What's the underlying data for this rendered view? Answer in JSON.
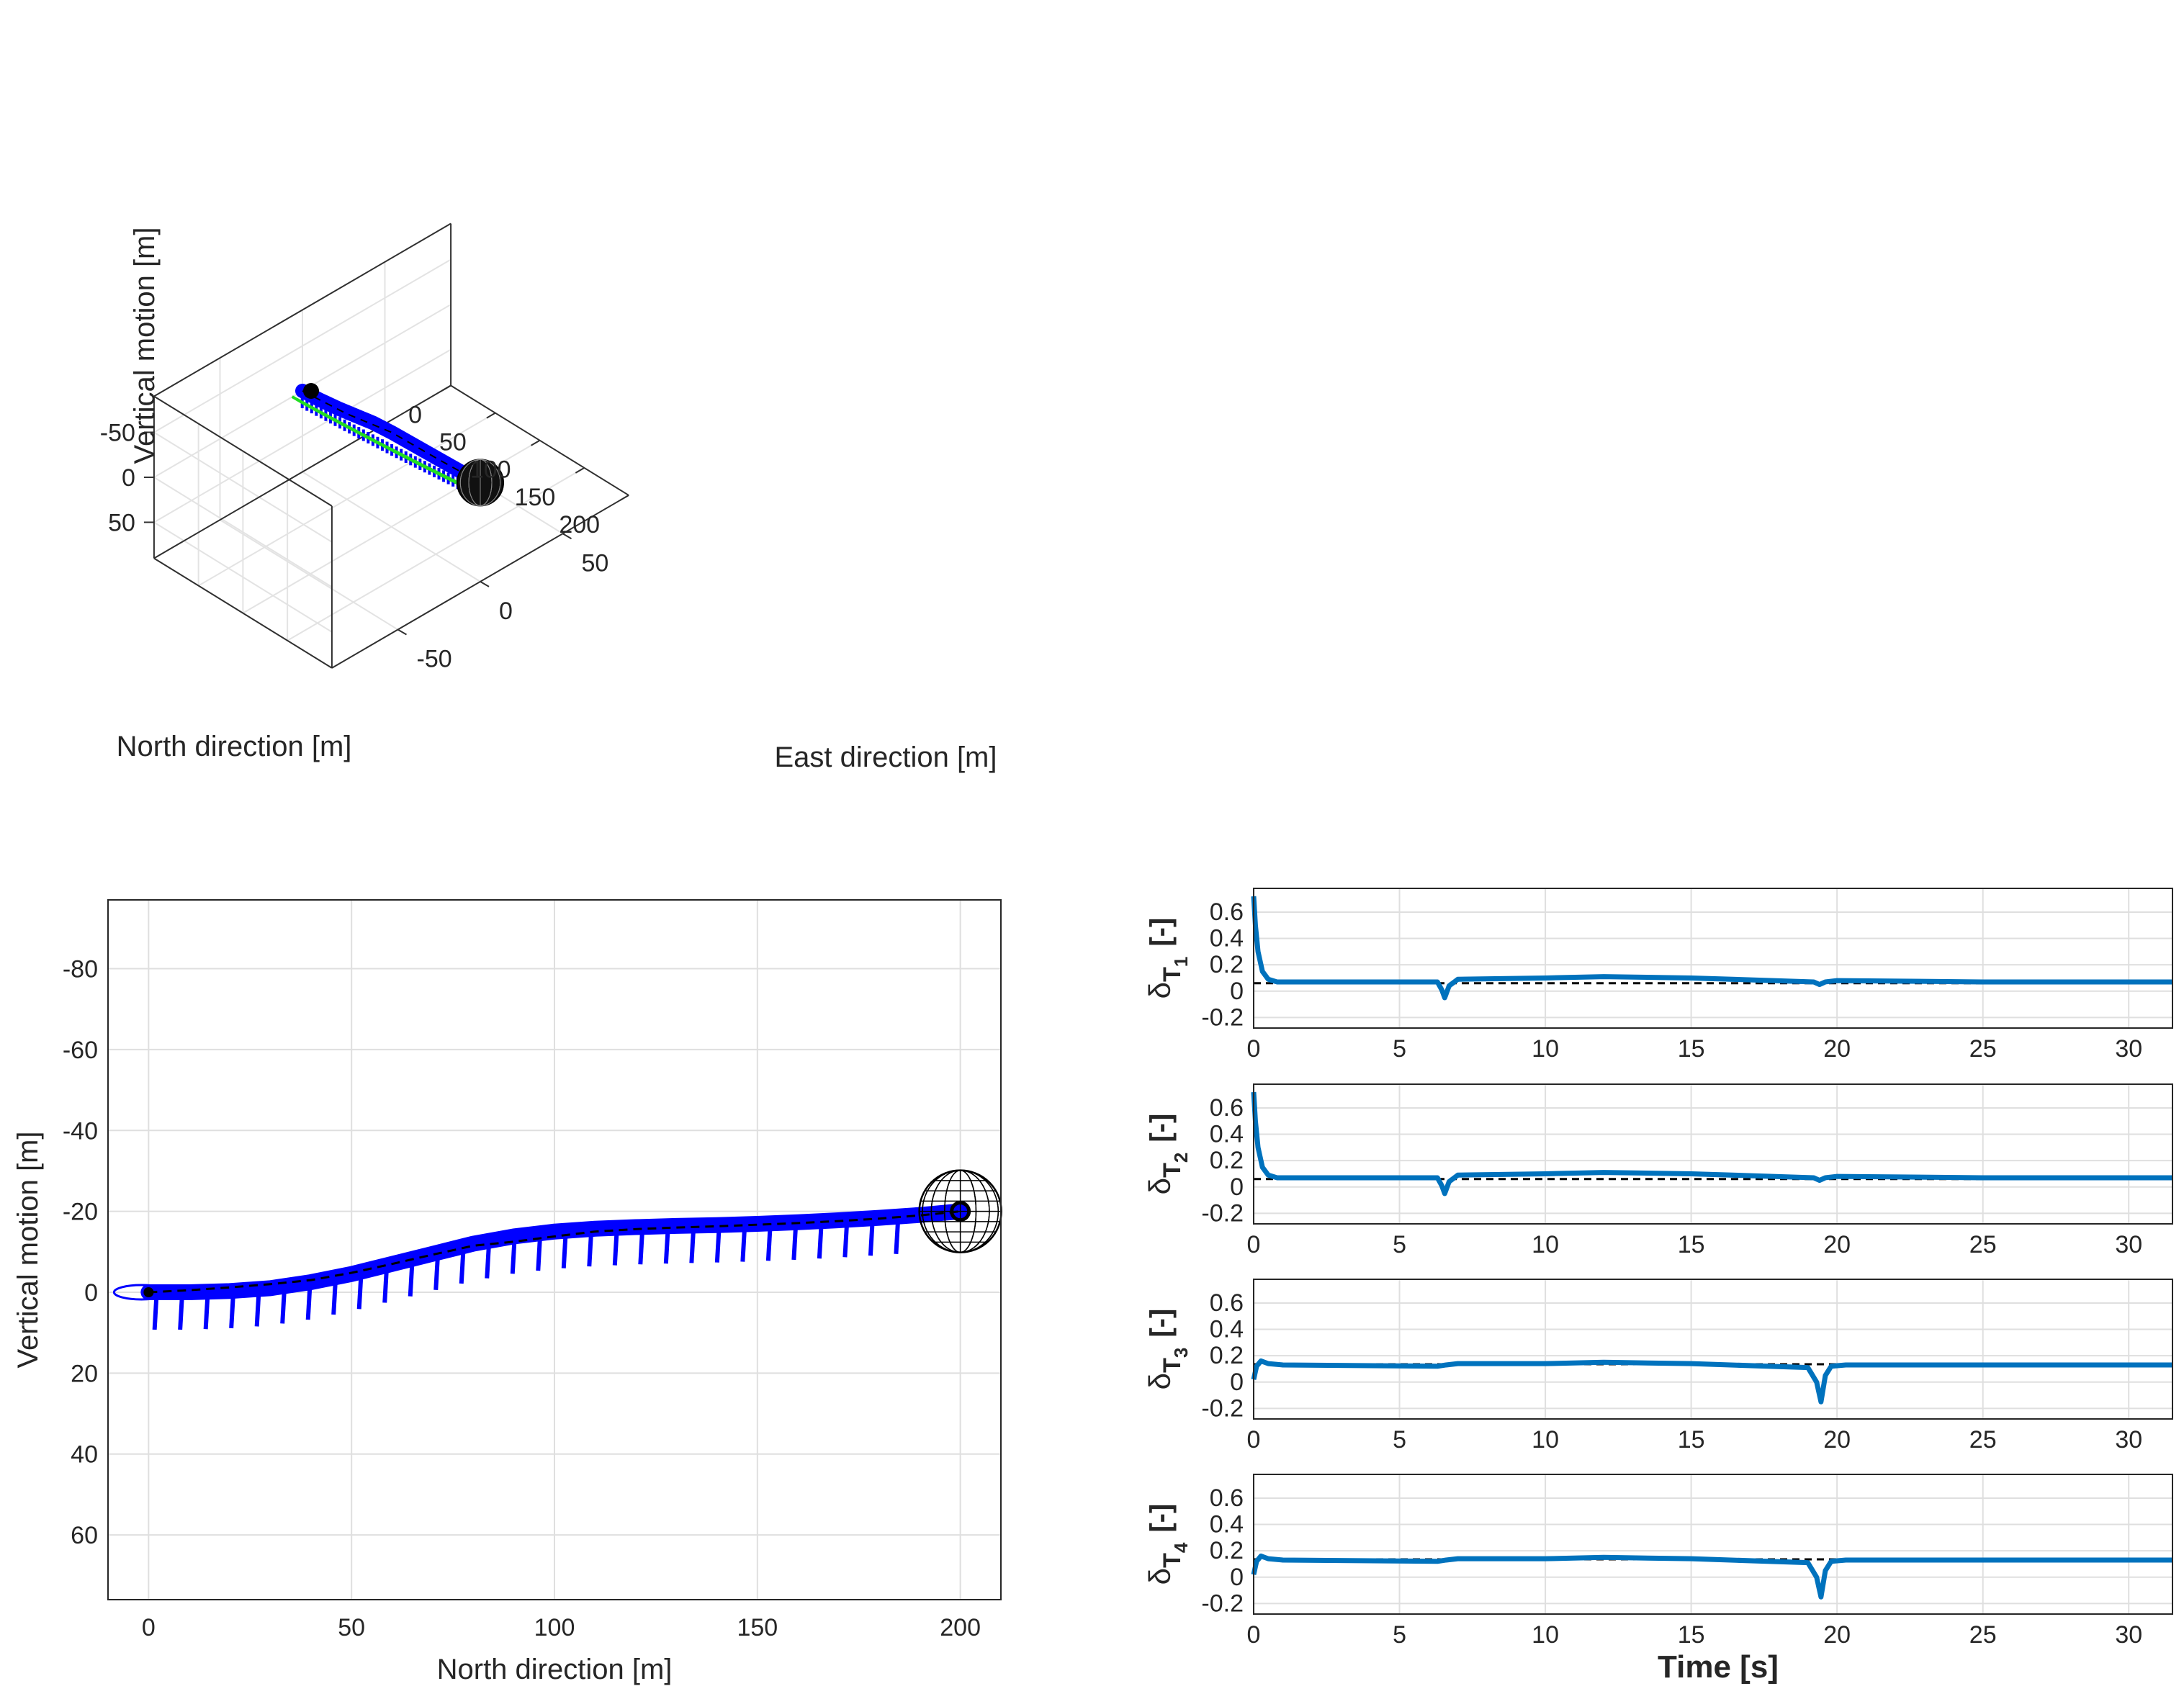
{
  "colors": {
    "trajectory_blue": "#0000ff",
    "thrust_line": "#0072bd",
    "reference_black": "#000000",
    "attitude_green": "#22dd22",
    "grid": "#dfdfdf",
    "axis_text": "#262626"
  },
  "chart_data": [
    {
      "id": "plot3d",
      "type": "line",
      "projection": "3d",
      "title": "",
      "xlabel": "North direction [m]",
      "ylabel": "East direction [m]",
      "zlabel": "Vertical motion [m]",
      "xticks": [
        0,
        50,
        100,
        150,
        200
      ],
      "yticks": [
        -50,
        0,
        50
      ],
      "zticks": [
        -50,
        0,
        50
      ],
      "xlim": [
        0,
        200
      ],
      "ylim": [
        -90,
        90
      ],
      "zlim": [
        -90,
        90
      ],
      "zdir": "reverse",
      "grid": true,
      "series": [
        {
          "name": "trajectory",
          "color": "#0000ff",
          "style": "solid",
          "x": [
            0,
            20,
            40,
            60,
            80,
            100,
            120,
            140,
            160,
            180,
            200
          ],
          "y": [
            0,
            0,
            0,
            0,
            0,
            0,
            0,
            0,
            0,
            0,
            0
          ],
          "z": [
            0,
            -2,
            -5,
            -9,
            -13,
            -15,
            -16,
            -17,
            -18,
            -19,
            -20
          ]
        },
        {
          "name": "reference",
          "color": "#000000",
          "style": "dashed",
          "x": [
            0,
            50,
            100,
            150,
            200
          ],
          "y": [
            0,
            0,
            0,
            0,
            0
          ],
          "z": [
            0,
            -5,
            -15,
            -17,
            -20
          ]
        }
      ],
      "markers": [
        {
          "name": "start",
          "x": 0,
          "y": 0,
          "z": 0
        },
        {
          "name": "target-sphere",
          "x": 200,
          "y": 0,
          "z": -20
        }
      ]
    },
    {
      "id": "side",
      "type": "line",
      "title": "",
      "xlabel": "North direction [m]",
      "ylabel": "Vertical motion [m]",
      "xticks": [
        0,
        50,
        100,
        150,
        200
      ],
      "yticks": [
        -80,
        -60,
        -40,
        -20,
        0,
        20,
        40,
        60
      ],
      "xlim": [
        -10,
        210
      ],
      "ylim": [
        -97,
        76
      ],
      "ydir": "reverse",
      "grid": true,
      "series": [
        {
          "name": "trajectory",
          "color": "#0000ff",
          "style": "solid",
          "x": [
            0,
            10,
            20,
            30,
            40,
            50,
            60,
            70,
            80,
            90,
            100,
            110,
            120,
            130,
            140,
            150,
            160,
            170,
            180,
            190,
            200
          ],
          "y": [
            0,
            0,
            -0.3,
            -1,
            -2.5,
            -4.5,
            -7,
            -9.5,
            -12,
            -13.8,
            -15,
            -15.7,
            -16.1,
            -16.4,
            -16.6,
            -16.9,
            -17.3,
            -17.8,
            -18.4,
            -19.1,
            -20
          ]
        },
        {
          "name": "reference",
          "color": "#000000",
          "style": "dashed",
          "x": [
            0,
            10,
            20,
            30,
            40,
            50,
            60,
            70,
            80,
            90,
            100,
            110,
            120,
            130,
            140,
            150,
            160,
            170,
            180,
            190,
            200
          ],
          "y": [
            0,
            -0.5,
            -1.2,
            -2,
            -3,
            -4.8,
            -7,
            -9.3,
            -11.5,
            -12.5,
            -13.8,
            -15,
            -15.6,
            -16,
            -16.3,
            -16.7,
            -17.1,
            -17.6,
            -18.2,
            -19,
            -20
          ]
        }
      ],
      "markers": [
        {
          "name": "start",
          "x": 0,
          "y": 0
        },
        {
          "name": "target-sphere",
          "x": 200,
          "y": -20
        }
      ]
    },
    {
      "id": "T1",
      "type": "line",
      "title": "",
      "ylabel": "δT1 [-]",
      "ylabel_sym": "δ",
      "ylabel_sub": "T",
      "ylabel_idx": "1",
      "ylabel_unit": "[-]",
      "xlabel": "",
      "xticks": [
        0,
        5,
        10,
        15,
        20,
        25,
        30
      ],
      "yticks": [
        -0.2,
        0,
        0.2,
        0.4,
        0.6
      ],
      "xlim": [
        0,
        31.5
      ],
      "ylim": [
        -0.28,
        0.78
      ],
      "grid": true,
      "series": [
        {
          "name": "thrust",
          "color": "#0072bd",
          "style": "solid",
          "x": [
            0,
            0.06,
            0.15,
            0.3,
            0.5,
            0.8,
            1.2,
            6.3,
            6.45,
            6.55,
            6.7,
            7,
            10,
            12,
            15,
            19.2,
            19.4,
            19.6,
            20,
            25,
            31.5
          ],
          "y": [
            0.72,
            0.5,
            0.3,
            0.15,
            0.09,
            0.07,
            0.07,
            0.07,
            0.01,
            -0.05,
            0.04,
            0.09,
            0.1,
            0.11,
            0.1,
            0.07,
            0.05,
            0.07,
            0.08,
            0.07,
            0.07
          ]
        },
        {
          "name": "reference",
          "color": "#000000",
          "style": "dashed",
          "x": [
            0,
            31.5
          ],
          "y": [
            0.06,
            0.06
          ]
        }
      ]
    },
    {
      "id": "T2",
      "type": "line",
      "title": "",
      "ylabel": "δT2 [-]",
      "ylabel_sym": "δ",
      "ylabel_sub": "T",
      "ylabel_idx": "2",
      "ylabel_unit": "[-]",
      "xlabel": "",
      "xticks": [
        0,
        5,
        10,
        15,
        20,
        25,
        30
      ],
      "yticks": [
        -0.2,
        0,
        0.2,
        0.4,
        0.6
      ],
      "xlim": [
        0,
        31.5
      ],
      "ylim": [
        -0.28,
        0.78
      ],
      "grid": true,
      "series": [
        {
          "name": "thrust",
          "color": "#0072bd",
          "style": "solid",
          "x": [
            0,
            0.06,
            0.15,
            0.3,
            0.5,
            0.8,
            1.2,
            6.3,
            6.45,
            6.55,
            6.7,
            7,
            10,
            12,
            15,
            19.2,
            19.4,
            19.6,
            20,
            25,
            31.5
          ],
          "y": [
            0.72,
            0.5,
            0.3,
            0.15,
            0.09,
            0.07,
            0.07,
            0.07,
            0.01,
            -0.05,
            0.04,
            0.09,
            0.1,
            0.11,
            0.1,
            0.07,
            0.05,
            0.07,
            0.08,
            0.07,
            0.07
          ]
        },
        {
          "name": "reference",
          "color": "#000000",
          "style": "dashed",
          "x": [
            0,
            31.5
          ],
          "y": [
            0.06,
            0.06
          ]
        }
      ]
    },
    {
      "id": "T3",
      "type": "line",
      "title": "",
      "ylabel": "δT3 [-]",
      "ylabel_sym": "δ",
      "ylabel_sub": "T",
      "ylabel_idx": "3",
      "ylabel_unit": "[-]",
      "xlabel": "",
      "xticks": [
        0,
        5,
        10,
        15,
        20,
        25,
        30
      ],
      "yticks": [
        -0.2,
        0,
        0.2,
        0.4,
        0.6
      ],
      "xlim": [
        0,
        31.5
      ],
      "ylim": [
        -0.28,
        0.78
      ],
      "grid": true,
      "series": [
        {
          "name": "thrust",
          "color": "#0072bd",
          "style": "solid",
          "x": [
            0,
            0.1,
            0.25,
            0.5,
            1,
            6.3,
            6.6,
            7,
            10,
            12,
            15,
            19,
            19.3,
            19.45,
            19.6,
            19.8,
            20.3,
            25,
            31.5
          ],
          "y": [
            0.02,
            0.12,
            0.16,
            0.14,
            0.13,
            0.12,
            0.13,
            0.14,
            0.14,
            0.15,
            0.14,
            0.11,
            0.0,
            -0.15,
            0.05,
            0.12,
            0.13,
            0.13,
            0.13
          ]
        },
        {
          "name": "reference",
          "color": "#000000",
          "style": "dashed",
          "x": [
            0,
            31.5
          ],
          "y": [
            0.135,
            0.135
          ]
        }
      ]
    },
    {
      "id": "T4",
      "type": "line",
      "title": "",
      "ylabel": "δT4 [-]",
      "ylabel_sym": "δ",
      "ylabel_sub": "T",
      "ylabel_idx": "4",
      "ylabel_unit": "[-]",
      "xlabel": "Time [s]",
      "xticks": [
        0,
        5,
        10,
        15,
        20,
        25,
        30
      ],
      "yticks": [
        -0.2,
        0,
        0.2,
        0.4,
        0.6
      ],
      "xlim": [
        0,
        31.5
      ],
      "ylim": [
        -0.28,
        0.78
      ],
      "grid": true,
      "series": [
        {
          "name": "thrust",
          "color": "#0072bd",
          "style": "solid",
          "x": [
            0,
            0.1,
            0.25,
            0.5,
            1,
            6.3,
            6.6,
            7,
            10,
            12,
            15,
            19,
            19.3,
            19.45,
            19.6,
            19.8,
            20.3,
            25,
            31.5
          ],
          "y": [
            0.02,
            0.12,
            0.16,
            0.14,
            0.13,
            0.12,
            0.13,
            0.14,
            0.14,
            0.15,
            0.14,
            0.11,
            0.0,
            -0.15,
            0.05,
            0.12,
            0.13,
            0.13,
            0.13
          ]
        },
        {
          "name": "reference",
          "color": "#000000",
          "style": "dashed",
          "x": [
            0,
            31.5
          ],
          "y": [
            0.135,
            0.135
          ]
        }
      ]
    }
  ]
}
